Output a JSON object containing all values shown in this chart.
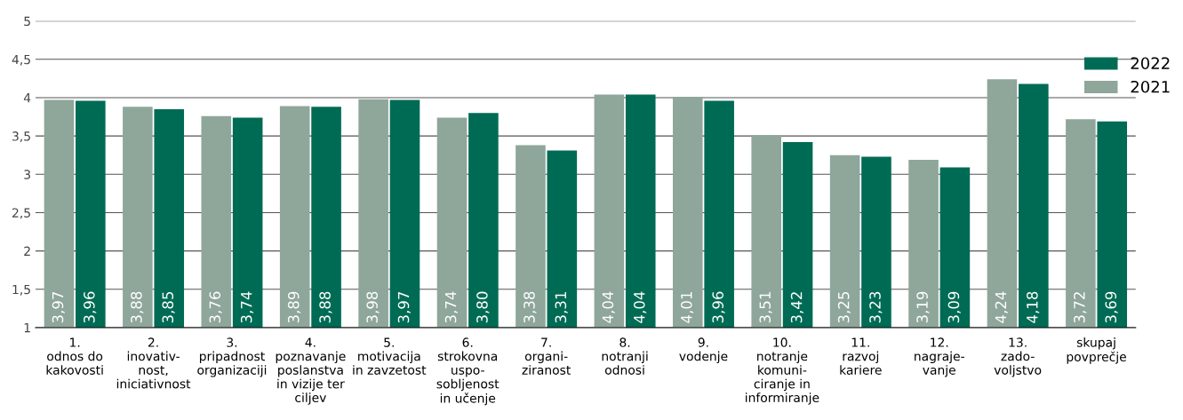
{
  "chart_data": {
    "type": "bar",
    "categories": [
      "1.\nodnos do\nkakovosti",
      "2.\ninovativ-\nnost,\niniciativnost",
      "3.\npripadnost\norganizaciji",
      "4.\npoznavanje\nposlanstva\nin vizije ter\nciljev",
      "5.\nmotivacija\nin zavzetost",
      "6.\nstrokovna\nuspo-\nsobljenost\nin učenje",
      "7.\norgani-\nziranost",
      "8.\nnotranji\nodnosi",
      "9.\nvodenje",
      "10.\nnotranje\nkomuni-\nciranje in\ninformiranje",
      "11.\nrazvoj\nkariere",
      "12.\nnagraje-\nvanje",
      "13.\nzado-\nvoljstvo",
      "skupaj\npovprečje"
    ],
    "series": [
      {
        "name": "2021",
        "color": "#8fa69b",
        "values": [
          3.97,
          3.88,
          3.76,
          3.89,
          3.98,
          3.74,
          3.38,
          4.04,
          4.01,
          3.51,
          3.25,
          3.19,
          4.24,
          3.72
        ],
        "value_labels": [
          "3,97",
          "3,88",
          "3,76",
          "3,89",
          "3,98",
          "3,74",
          "3,38",
          "4,04",
          "4,01",
          "3,51",
          "3,25",
          "3,19",
          "4,24",
          "3,72"
        ]
      },
      {
        "name": "2022",
        "color": "#006b54",
        "values": [
          3.96,
          3.85,
          3.74,
          3.88,
          3.97,
          3.8,
          3.31,
          4.04,
          3.96,
          3.42,
          3.23,
          3.09,
          4.18,
          3.69
        ],
        "value_labels": [
          "3,96",
          "3,85",
          "3,74",
          "3,88",
          "3,97",
          "3,80",
          "3,31",
          "4,04",
          "3,96",
          "3,42",
          "3,23",
          "3,09",
          "4,18",
          "3,69"
        ]
      }
    ],
    "ylim": [
      1,
      5
    ],
    "yticks": [
      1,
      {
        "value": 1.5,
        "label": "1,5"
      },
      2,
      {
        "value": 2.5,
        "label": "2,5"
      },
      3,
      {
        "value": 3.5,
        "label": "3,5"
      },
      4,
      {
        "value": 4.5,
        "label": "4,5"
      },
      5
    ],
    "grid": "y",
    "legend": "top right"
  }
}
